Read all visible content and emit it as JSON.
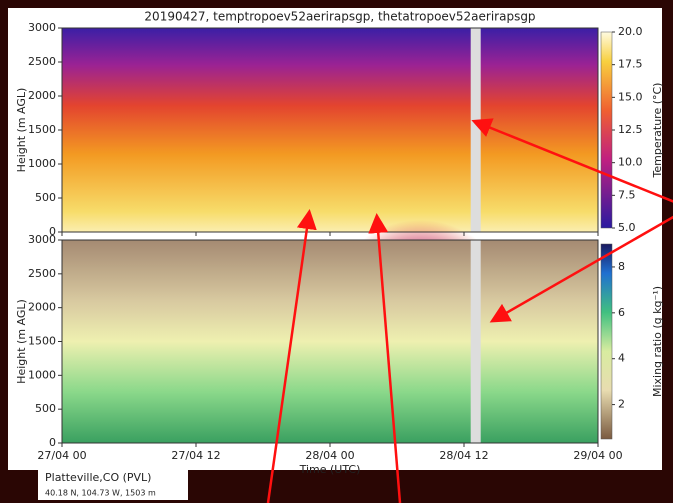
{
  "chart_data": [
    {
      "type": "heatmap",
      "title": "20190427, temptropoev52aerirapsgp, thetatropoev52aerirapsgp",
      "ylabel": "Height (m AGL)",
      "ylim": [
        0,
        3000
      ],
      "yticks": [
        0,
        500,
        1000,
        1500,
        2000,
        2500,
        3000
      ],
      "xlim": [
        0,
        48
      ],
      "xticks": [
        0,
        12,
        24,
        36,
        48
      ],
      "colorbar": {
        "label": "Temperature (°C)",
        "lim": [
          5,
          20
        ],
        "ticks": [
          {
            "value": 5,
            "label": "5.0"
          },
          {
            "value": 7.5,
            "label": "7.5"
          },
          {
            "value": 10,
            "label": "10.0"
          },
          {
            "value": 12.5,
            "label": "12.5"
          },
          {
            "value": 15,
            "label": "15.0"
          },
          {
            "value": 17.5,
            "label": "17.5"
          },
          {
            "value": 20,
            "label": "20.0"
          }
        ]
      }
    },
    {
      "type": "heatmap",
      "xlabel": "Time (UTC)",
      "ylabel": "Height (m AGL)",
      "ylim": [
        0,
        3000
      ],
      "yticks": [
        0,
        500,
        1000,
        1500,
        2000,
        2500,
        3000
      ],
      "xlim": [
        0,
        48
      ],
      "xticks": [
        {
          "value": 0,
          "label": "27/04 00"
        },
        {
          "value": 12,
          "label": "27/04 12"
        },
        {
          "value": 24,
          "label": "28/04 00"
        },
        {
          "value": 36,
          "label": "28/04 12"
        },
        {
          "value": 48,
          "label": "29/04 00"
        }
      ],
      "colorbar": {
        "label": "Mixing ratio (g kg⁻¹)",
        "lim": [
          0.5,
          9
        ],
        "ticks": [
          2,
          4,
          6,
          8
        ]
      }
    }
  ],
  "footer": {
    "site": "Platteville,CO (PVL)",
    "coords": "40.18 N, 104.73 W, 1503 m"
  }
}
